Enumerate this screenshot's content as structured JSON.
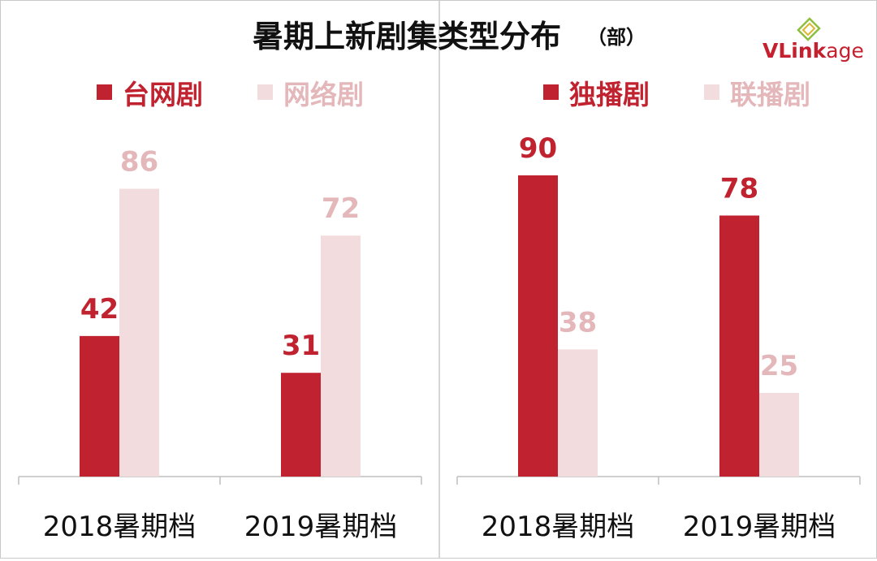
{
  "title": "暑期上新剧集类型分布",
  "title_unit": "（部）",
  "logo": {
    "part1": "VLink",
    "part2": "age"
  },
  "colors": {
    "dark": "#c0232f",
    "light": "#f3dcdd",
    "axis": "#bfbfbf",
    "light_label": "#e4b7ba"
  },
  "chart_data": [
    {
      "type": "bar",
      "categories": [
        "2018暑期档",
        "2019暑期档"
      ],
      "series": [
        {
          "name": "台网剧",
          "values": [
            42,
            31
          ],
          "color": "dark"
        },
        {
          "name": "网络剧",
          "values": [
            86,
            72
          ],
          "color": "light"
        }
      ],
      "ylim": [
        0,
        100
      ],
      "grid": false,
      "legend_position": "top"
    },
    {
      "type": "bar",
      "categories": [
        "2018暑期档",
        "2019暑期档"
      ],
      "series": [
        {
          "name": "独播剧",
          "values": [
            90,
            78
          ],
          "color": "dark"
        },
        {
          "name": "联播剧",
          "values": [
            38,
            25
          ],
          "color": "light"
        }
      ],
      "ylim": [
        0,
        100
      ],
      "grid": false,
      "legend_position": "top"
    }
  ]
}
